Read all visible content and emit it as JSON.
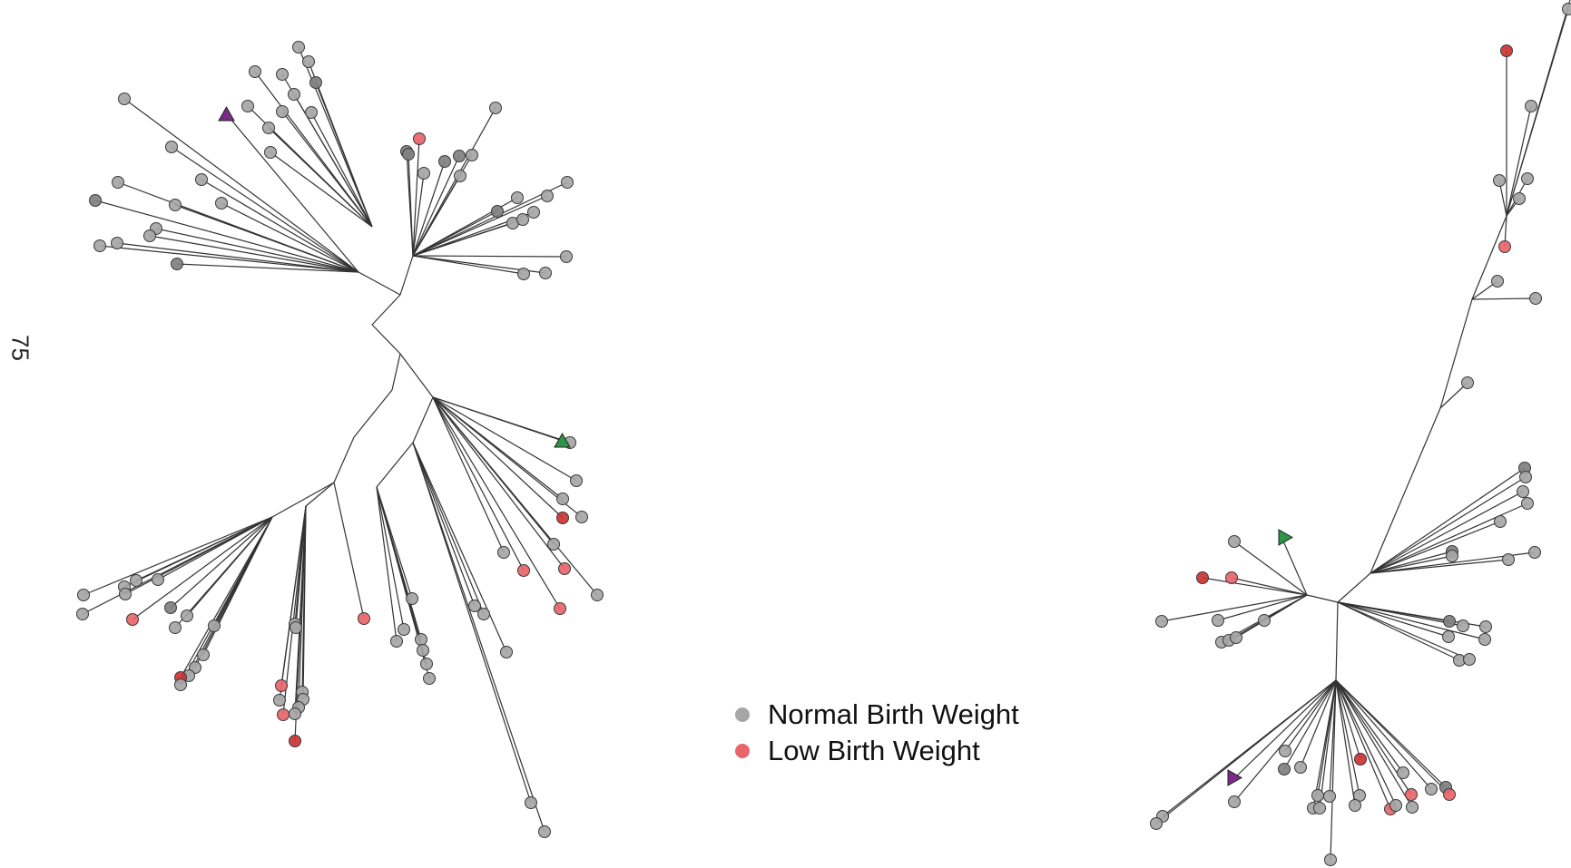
{
  "page_number": "75",
  "legend": {
    "items": [
      {
        "label": "Normal Birth Weight",
        "color": "#a6a6a6"
      },
      {
        "label": "Low Birth Weight",
        "color": "#e8666b"
      }
    ]
  },
  "colors": {
    "normal": "#a6a6a6",
    "low": "#e8666b",
    "low_dark": "#cc3333",
    "normal_dark": "#808080",
    "marker_purple": "#7b2a87",
    "marker_green": "#2e9447",
    "edge": "#333333"
  }
}
